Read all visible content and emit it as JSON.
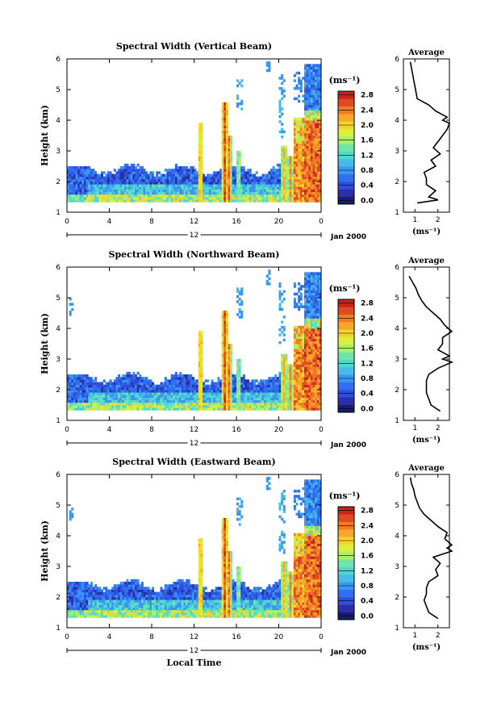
{
  "chart_data": [
    {
      "type": "heatmap",
      "title": "Spectral Width (Vertical Beam)",
      "ylabel": "Height (km)",
      "xlabel": "",
      "x_ticks": [
        "0",
        "4",
        "8",
        "12",
        "16",
        "20",
        "0"
      ],
      "y_ticks": [
        "1",
        "2",
        "3",
        "4",
        "5",
        "6"
      ],
      "xlim": [
        0,
        24
      ],
      "ylim": [
        1,
        6
      ],
      "date_label": "12",
      "date_suffix": "Jan 2000",
      "colorbar_unit": "(ms⁻¹)",
      "colorbar_ticks": [
        "0.0",
        "0.4",
        "0.8",
        "1.2",
        "1.6",
        "2.0",
        "2.4",
        "2.8"
      ],
      "clim": [
        0,
        3.0
      ],
      "profile": {
        "title": "Average",
        "xlabel": "(ms⁻¹)",
        "x_ticks": [
          "1",
          "2"
        ],
        "x_tick_values": [
          1,
          2
        ],
        "xlim": [
          0.5,
          2.5
        ],
        "y_ticks": [
          "1",
          "2",
          "3",
          "4",
          "5",
          "6"
        ],
        "heights": [
          1.3,
          1.4,
          1.5,
          1.7,
          1.9,
          2.1,
          2.3,
          2.5,
          2.7,
          2.9,
          3.1,
          3.3,
          3.5,
          3.7,
          3.9,
          4.0,
          4.1,
          4.3,
          4.5,
          4.7,
          4.9,
          5.1,
          5.3,
          5.5,
          5.7,
          5.9
        ],
        "values": [
          1.1,
          2.0,
          1.6,
          1.9,
          1.5,
          1.5,
          1.4,
          1.9,
          1.7,
          2.1,
          1.8,
          2.0,
          2.2,
          2.4,
          2.5,
          2.2,
          2.4,
          1.9,
          1.6,
          1.1,
          1.05,
          1.0,
          0.95,
          0.9,
          0.85,
          0.8
        ]
      }
    },
    {
      "type": "heatmap",
      "title": "Spectral Width (Northward Beam)",
      "ylabel": "Height (km)",
      "xlabel": "",
      "x_ticks": [
        "0",
        "4",
        "8",
        "12",
        "16",
        "20",
        "0"
      ],
      "y_ticks": [
        "1",
        "2",
        "3",
        "4",
        "5",
        "6"
      ],
      "xlim": [
        0,
        24
      ],
      "ylim": [
        1,
        6
      ],
      "date_label": "12",
      "date_suffix": "Jan 2000",
      "colorbar_unit": "(ms⁻¹)",
      "colorbar_ticks": [
        "0.0",
        "0.4",
        "0.8",
        "1.2",
        "1.6",
        "2.0",
        "2.4",
        "2.8"
      ],
      "clim": [
        0,
        3.0
      ],
      "profile": {
        "title": "Average",
        "xlabel": "(ms⁻¹)",
        "x_ticks": [
          "1",
          "2"
        ],
        "x_tick_values": [
          1,
          2
        ],
        "xlim": [
          0.5,
          2.5
        ],
        "y_ticks": [
          "1",
          "2",
          "3",
          "4",
          "5",
          "6"
        ],
        "heights": [
          1.3,
          1.5,
          1.7,
          1.9,
          2.1,
          2.3,
          2.5,
          2.7,
          2.9,
          3.0,
          3.1,
          3.3,
          3.5,
          3.7,
          3.9,
          4.1,
          4.3,
          4.5,
          4.7,
          4.9,
          5.1,
          5.3,
          5.5,
          5.7
        ],
        "values": [
          2.1,
          1.7,
          1.6,
          1.5,
          1.5,
          1.5,
          1.6,
          2.0,
          2.6,
          2.2,
          2.5,
          2.0,
          2.2,
          2.2,
          2.6,
          2.3,
          2.1,
          1.8,
          1.5,
          1.3,
          1.15,
          1.05,
          0.9,
          0.75
        ]
      }
    },
    {
      "type": "heatmap",
      "title": "Spectral Width (Eastward Beam)",
      "ylabel": "Height (km)",
      "xlabel": "Local Time",
      "x_ticks": [
        "0",
        "4",
        "8",
        "12",
        "16",
        "20",
        "0"
      ],
      "y_ticks": [
        "1",
        "2",
        "3",
        "4",
        "5",
        "6"
      ],
      "xlim": [
        0,
        24
      ],
      "ylim": [
        1,
        6
      ],
      "date_label": "12",
      "date_suffix": "Jan 2000",
      "colorbar_unit": "(ms⁻¹)",
      "colorbar_ticks": [
        "0.0",
        "0.4",
        "0.8",
        "1.2",
        "1.6",
        "2.0",
        "2.4",
        "2.8"
      ],
      "clim": [
        0,
        3.0
      ],
      "profile": {
        "title": "Average",
        "xlabel": "(ms⁻¹)",
        "x_ticks": [
          "1",
          "2"
        ],
        "x_tick_values": [
          1,
          2
        ],
        "xlim": [
          0.5,
          2.5
        ],
        "y_ticks": [
          "1",
          "2",
          "3",
          "4",
          "5",
          "6"
        ],
        "heights": [
          1.3,
          1.5,
          1.7,
          1.9,
          2.1,
          2.3,
          2.5,
          2.7,
          2.9,
          3.1,
          3.3,
          3.5,
          3.6,
          3.7,
          3.9,
          4.1,
          4.3,
          4.5,
          4.7,
          4.9,
          5.1,
          5.3,
          5.5,
          5.7,
          5.9
        ],
        "values": [
          2.0,
          1.6,
          1.5,
          1.4,
          1.5,
          1.5,
          1.6,
          2.0,
          1.9,
          2.1,
          1.8,
          2.6,
          2.4,
          2.6,
          2.3,
          2.4,
          2.0,
          1.7,
          1.4,
          1.2,
          1.1,
          1.0,
          0.95,
          0.85,
          0.8
        ]
      }
    }
  ]
}
